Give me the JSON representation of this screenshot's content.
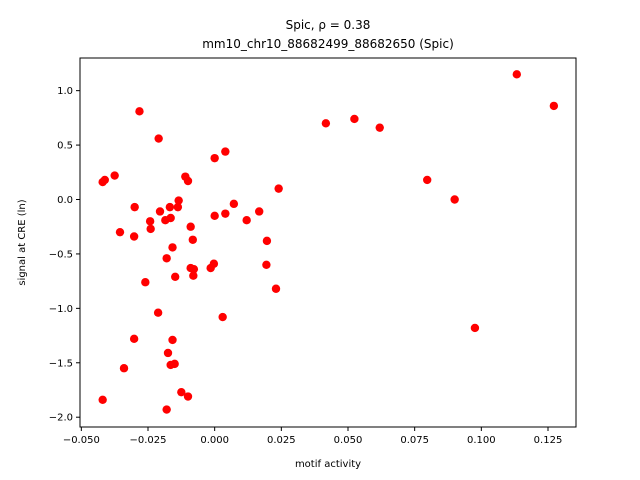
{
  "chart_data": {
    "type": "scatter",
    "title_line1": "Spic, ρ = 0.38",
    "title_line2": "mm10_chr10_88682499_88682650 (Spic)",
    "xlabel": "motif activity",
    "ylabel": "signal at CRE (ln)",
    "xlim": [
      -0.0505,
      0.1355
    ],
    "ylim": [
      -2.09,
      1.3
    ],
    "xticks": [
      -0.05,
      -0.025,
      0.0,
      0.025,
      0.05,
      0.075,
      0.1,
      0.125
    ],
    "xtick_labels": [
      "−0.050",
      "−0.025",
      "0.000",
      "0.025",
      "0.050",
      "0.075",
      "0.100",
      "0.125"
    ],
    "yticks": [
      -2.0,
      -1.5,
      -1.0,
      -0.5,
      0.0,
      0.5,
      1.0
    ],
    "ytick_labels": [
      "−2.0",
      "−1.5",
      "−1.0",
      "−0.5",
      "0.0",
      "0.5",
      "1.0"
    ],
    "marker_color": "#ff0000",
    "grid": false,
    "points": [
      {
        "x": 0.1133,
        "y": 1.15
      },
      {
        "x": 0.1272,
        "y": 0.86
      },
      {
        "x": 0.0524,
        "y": 0.74
      },
      {
        "x": 0.0417,
        "y": 0.7
      },
      {
        "x": 0.0619,
        "y": 0.66
      },
      {
        "x": 0.0797,
        "y": 0.18
      },
      {
        "x": 0.09,
        "y": 0.0
      },
      {
        "x": 0.0976,
        "y": -1.18
      },
      {
        "x": 0.024,
        "y": 0.1
      },
      {
        "x": 0.023,
        "y": -0.82
      },
      {
        "x": 0.0196,
        "y": -0.38
      },
      {
        "x": 0.0194,
        "y": -0.6
      },
      {
        "x": 0.0167,
        "y": -0.11
      },
      {
        "x": 0.012,
        "y": -0.19
      },
      {
        "x": 0.0072,
        "y": -0.04
      },
      {
        "x": 0.004,
        "y": 0.44
      },
      {
        "x": 0.004,
        "y": -0.13
      },
      {
        "x": 0.003,
        "y": -1.08
      },
      {
        "x": 0.0,
        "y": 0.38
      },
      {
        "x": 0.0,
        "y": -0.15
      },
      {
        "x": -0.0003,
        "y": -0.59
      },
      {
        "x": -0.0015,
        "y": -0.63
      },
      {
        "x": -0.0282,
        "y": 0.81
      },
      {
        "x": -0.021,
        "y": 0.56
      },
      {
        "x": -0.0412,
        "y": 0.18
      },
      {
        "x": -0.042,
        "y": 0.16
      },
      {
        "x": -0.0375,
        "y": 0.22
      },
      {
        "x": -0.03,
        "y": -0.07
      },
      {
        "x": -0.0242,
        "y": -0.2
      },
      {
        "x": -0.024,
        "y": -0.27
      },
      {
        "x": -0.0355,
        "y": -0.3
      },
      {
        "x": -0.0302,
        "y": -0.34
      },
      {
        "x": -0.0205,
        "y": -0.11
      },
      {
        "x": -0.0185,
        "y": -0.19
      },
      {
        "x": -0.0168,
        "y": -0.07
      },
      {
        "x": -0.0165,
        "y": -0.17
      },
      {
        "x": -0.0135,
        "y": -0.01
      },
      {
        "x": -0.0138,
        "y": -0.07
      },
      {
        "x": -0.011,
        "y": 0.21
      },
      {
        "x": -0.01,
        "y": 0.17
      },
      {
        "x": -0.009,
        "y": -0.25
      },
      {
        "x": -0.0082,
        "y": -0.37
      },
      {
        "x": -0.0158,
        "y": -0.44
      },
      {
        "x": -0.018,
        "y": -0.54
      },
      {
        "x": -0.009,
        "y": -0.63
      },
      {
        "x": -0.0078,
        "y": -0.64
      },
      {
        "x": -0.008,
        "y": -0.7
      },
      {
        "x": -0.0148,
        "y": -0.71
      },
      {
        "x": -0.026,
        "y": -0.76
      },
      {
        "x": -0.0212,
        "y": -1.04
      },
      {
        "x": -0.0158,
        "y": -1.29
      },
      {
        "x": -0.0302,
        "y": -1.28
      },
      {
        "x": -0.0175,
        "y": -1.41
      },
      {
        "x": -0.0165,
        "y": -1.52
      },
      {
        "x": -0.015,
        "y": -1.51
      },
      {
        "x": -0.034,
        "y": -1.55
      },
      {
        "x": -0.0125,
        "y": -1.77
      },
      {
        "x": -0.01,
        "y": -1.81
      },
      {
        "x": -0.042,
        "y": -1.84
      },
      {
        "x": -0.018,
        "y": -1.93
      }
    ]
  }
}
